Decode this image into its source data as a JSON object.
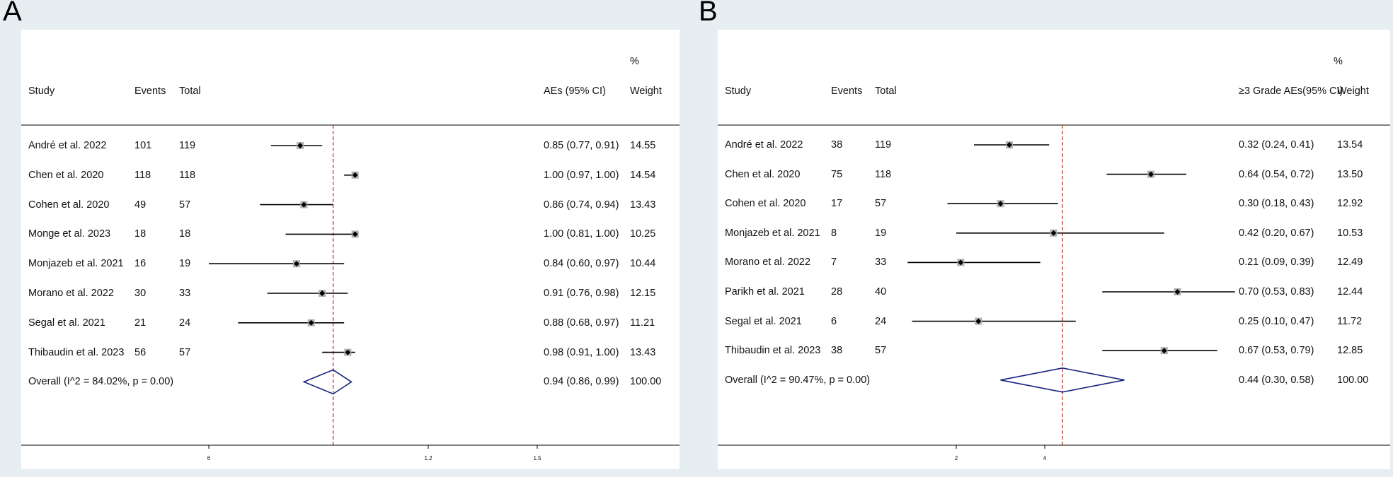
{
  "panels": [
    {
      "letter": "A",
      "headers": {
        "study": "Study",
        "events": "Events",
        "total": "Total",
        "effect": "AEs (95% CI)",
        "pct": "%",
        "weight": "Weight"
      },
      "axis_ticks": [
        "6",
        "1.2",
        "1.5"
      ],
      "chart_data": {
        "type": "forest",
        "title": "",
        "xlim": [
          0.2,
          1.85
        ],
        "ticks": [
          0.6,
          1.2,
          1.5
        ],
        "overall_line": 0.94,
        "studies": [
          {
            "study": "André et al. 2022",
            "events": "101",
            "total": "119",
            "est": 0.85,
            "lo": 0.77,
            "hi": 0.91,
            "ci": "0.85 (0.77, 0.91)",
            "weight": "14.55"
          },
          {
            "study": "Chen et al. 2020",
            "events": "118",
            "total": "118",
            "est": 1.0,
            "lo": 0.97,
            "hi": 1.0,
            "ci": "1.00 (0.97, 1.00)",
            "weight": "14.54"
          },
          {
            "study": "Cohen et al. 2020",
            "events": "49",
            "total": "57",
            "est": 0.86,
            "lo": 0.74,
            "hi": 0.94,
            "ci": "0.86 (0.74, 0.94)",
            "weight": "13.43"
          },
          {
            "study": "Monge et al. 2023",
            "events": "18",
            "total": "18",
            "est": 1.0,
            "lo": 0.81,
            "hi": 1.0,
            "ci": "1.00 (0.81, 1.00)",
            "weight": "10.25"
          },
          {
            "study": "Monjazeb et al. 2021",
            "events": "16",
            "total": "19",
            "est": 0.84,
            "lo": 0.6,
            "hi": 0.97,
            "ci": "0.84 (0.60, 0.97)",
            "weight": "10.44"
          },
          {
            "study": "Morano et al. 2022",
            "events": "30",
            "total": "33",
            "est": 0.91,
            "lo": 0.76,
            "hi": 0.98,
            "ci": "0.91 (0.76, 0.98)",
            "weight": "12.15"
          },
          {
            "study": "Segal et al. 2021",
            "events": "21",
            "total": "24",
            "est": 0.88,
            "lo": 0.68,
            "hi": 0.97,
            "ci": "0.88 (0.68, 0.97)",
            "weight": "11.21"
          },
          {
            "study": "Thibaudin et al. 2023",
            "events": "56",
            "total": "57",
            "est": 0.98,
            "lo": 0.91,
            "hi": 1.0,
            "ci": "0.98 (0.91, 1.00)",
            "weight": "13.43"
          }
        ],
        "overall": {
          "label": "Overall  (I^2 = 84.02%, p = 0.00)",
          "est": 0.94,
          "lo": 0.86,
          "hi": 0.99,
          "ci": "0.94 (0.86, 0.99)",
          "weight": "100.00"
        }
      }
    },
    {
      "letter": "B",
      "headers": {
        "study": "Study",
        "events": "Events",
        "total": "Total",
        "effect": "≥3 Grade AEs(95% CI)",
        "pct": "%",
        "weight": "Weight"
      },
      "axis_ticks": [
        "2",
        "4"
      ],
      "chart_data": {
        "type": "forest",
        "title": "",
        "xlim": [
          -0.84,
          1.28
        ],
        "ticks": [
          0.2,
          0.4
        ],
        "overall_line": 0.44,
        "studies": [
          {
            "study": "André et al. 2022",
            "events": "38",
            "total": "119",
            "est": 0.32,
            "lo": 0.24,
            "hi": 0.41,
            "ci": "0.32 (0.24, 0.41)",
            "weight": "13.54"
          },
          {
            "study": "Chen et al. 2020",
            "events": "75",
            "total": "118",
            "est": 0.64,
            "lo": 0.54,
            "hi": 0.72,
            "ci": "0.64 (0.54, 0.72)",
            "weight": "13.50"
          },
          {
            "study": "Cohen et al. 2020",
            "events": "17",
            "total": "57",
            "est": 0.3,
            "lo": 0.18,
            "hi": 0.43,
            "ci": "0.30 (0.18, 0.43)",
            "weight": "12.92"
          },
          {
            "study": "Monjazeb et al. 2021",
            "events": "8",
            "total": "19",
            "est": 0.42,
            "lo": 0.2,
            "hi": 0.67,
            "ci": "0.42 (0.20, 0.67)",
            "weight": "10.53"
          },
          {
            "study": "Morano et al. 2022",
            "events": "7",
            "total": "33",
            "est": 0.21,
            "lo": 0.09,
            "hi": 0.39,
            "ci": "0.21 (0.09, 0.39)",
            "weight": "12.49"
          },
          {
            "study": "Parikh et al. 2021",
            "events": "28",
            "total": "40",
            "est": 0.7,
            "lo": 0.53,
            "hi": 0.83,
            "ci": "0.70 (0.53, 0.83)",
            "weight": "12.44"
          },
          {
            "study": "Segal et al. 2021",
            "events": "6",
            "total": "24",
            "est": 0.25,
            "lo": 0.1,
            "hi": 0.47,
            "ci": "0.25 (0.10, 0.47)",
            "weight": "11.72"
          },
          {
            "study": "Thibaudin et al. 2023",
            "events": "38",
            "total": "57",
            "est": 0.67,
            "lo": 0.53,
            "hi": 0.79,
            "ci": "0.67 (0.53, 0.79)",
            "weight": "12.85"
          }
        ],
        "overall": {
          "label": "Overall  (I^2 = 90.47%, p = 0.00)",
          "est": 0.44,
          "lo": 0.3,
          "hi": 0.58,
          "ci": "0.44 (0.30, 0.58)",
          "weight": "100.00"
        }
      }
    }
  ],
  "colors": {
    "ci_line": "#000000",
    "marker_square": "#b0b0b0",
    "marker_dot": "#000000",
    "ref_line": "#c0392b",
    "diamond": "#1a237e",
    "axis": "#000000"
  }
}
